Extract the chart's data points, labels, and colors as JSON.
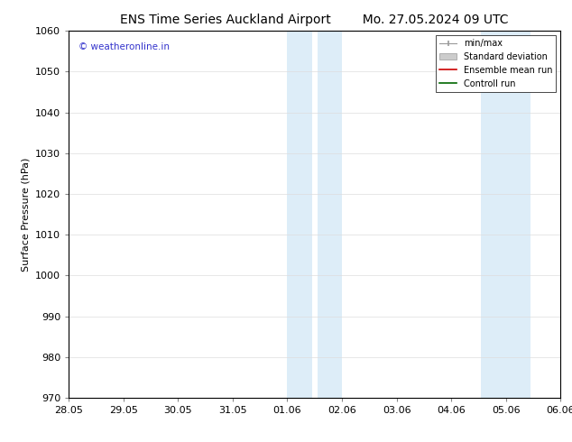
{
  "title_left": "ENS Time Series Auckland Airport",
  "title_right": "Mo. 27.05.2024 09 UTC",
  "ylabel": "Surface Pressure (hPa)",
  "ylim": [
    970,
    1060
  ],
  "yticks": [
    970,
    980,
    990,
    1000,
    1010,
    1020,
    1030,
    1040,
    1050,
    1060
  ],
  "xtick_labels": [
    "28.05",
    "29.05",
    "30.05",
    "31.05",
    "01.06",
    "02.06",
    "03.06",
    "04.06",
    "05.06",
    "06.06"
  ],
  "xtick_positions": [
    0,
    1,
    2,
    3,
    4,
    5,
    6,
    7,
    8,
    9
  ],
  "shaded_bands": [
    {
      "x_start": 4.0,
      "x_end": 4.45,
      "color": "#ddedf8"
    },
    {
      "x_start": 4.55,
      "x_end": 5.0,
      "color": "#ddedf8"
    },
    {
      "x_start": 7.55,
      "x_end": 8.0,
      "color": "#ddedf8"
    },
    {
      "x_start": 8.0,
      "x_end": 8.45,
      "color": "#ddedf8"
    }
  ],
  "watermark_text": "© weatheronline.in",
  "watermark_color": "#3333cc",
  "legend_entries": [
    {
      "label": "min/max",
      "color": "#aaaaaa",
      "style": "minmax"
    },
    {
      "label": "Standard deviation",
      "color": "#cccccc",
      "style": "stddev"
    },
    {
      "label": "Ensemble mean run",
      "color": "#cc0000",
      "style": "line"
    },
    {
      "label": "Controll run",
      "color": "#006600",
      "style": "line"
    }
  ],
  "background_color": "#ffffff",
  "plot_background": "#ffffff",
  "grid_color": "#dddddd",
  "title_fontsize": 10,
  "label_fontsize": 8,
  "tick_fontsize": 8
}
